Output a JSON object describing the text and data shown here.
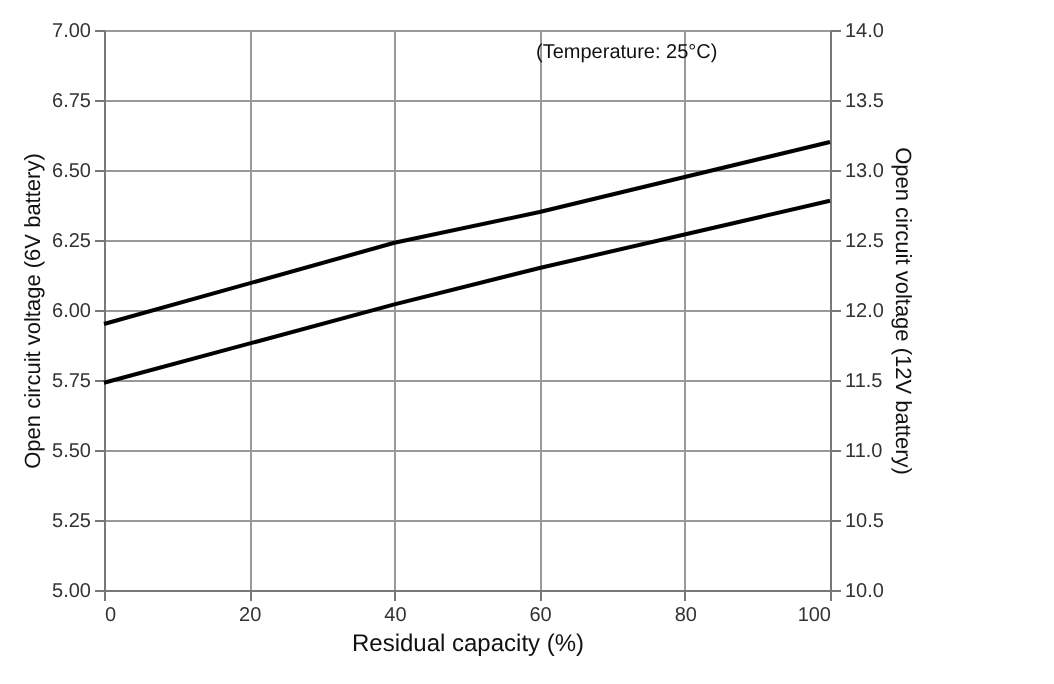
{
  "chart_data": {
    "type": "line",
    "xlabel": "Residual capacity (%)",
    "ylabel": "Open circuit voltage (6V battery)",
    "y2label": "Open circuit voltage (12V battery)",
    "annotations": [
      "(Temperature: 25°C)"
    ],
    "x": [
      0,
      40,
      60,
      100
    ],
    "series": [
      {
        "color": "#000000",
        "values": [
          5.95,
          6.24,
          6.35,
          6.6
        ]
      },
      {
        "color": "#000000",
        "values": [
          5.74,
          6.02,
          6.15,
          6.39
        ]
      }
    ],
    "xlim": [
      0,
      100
    ],
    "xticks": [
      0,
      20,
      40,
      60,
      80,
      100
    ],
    "ylim": [
      5.0,
      7.0
    ],
    "yticks": [
      {
        "value": 5.0,
        "label": "5.00"
      },
      {
        "value": 5.25,
        "label": "5.25"
      },
      {
        "value": 5.5,
        "label": "5.50"
      },
      {
        "value": 5.75,
        "label": "5.75"
      },
      {
        "value": 6.0,
        "label": "6.00"
      },
      {
        "value": 6.25,
        "label": "6.25"
      },
      {
        "value": 6.5,
        "label": "6.50"
      },
      {
        "value": 6.75,
        "label": "6.75"
      },
      {
        "value": 7.0,
        "label": "7.00"
      }
    ],
    "y2lim": [
      10.0,
      14.0
    ],
    "y2ticks": [
      {
        "value": 10.0,
        "label": "10.0"
      },
      {
        "value": 10.5,
        "label": "10.5"
      },
      {
        "value": 11.0,
        "label": "11.0"
      },
      {
        "value": 11.5,
        "label": "11.5"
      },
      {
        "value": 12.0,
        "label": "12.0"
      },
      {
        "value": 12.5,
        "label": "12.5"
      },
      {
        "value": 13.0,
        "label": "13.0"
      },
      {
        "value": 13.5,
        "label": "13.5"
      },
      {
        "value": 14.0,
        "label": "14.0"
      }
    ],
    "grid": true,
    "marker": "none",
    "line_style": "solid"
  }
}
